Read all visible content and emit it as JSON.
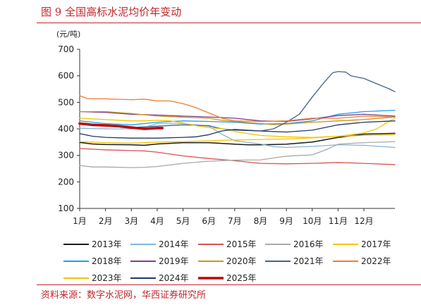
{
  "header": {
    "title": "图 9 全国高标水泥均价年变动"
  },
  "footer": {
    "source": "资料来源：数字水泥网，华西证券研究所"
  },
  "chart_data": {
    "type": "line",
    "title": "",
    "unit_label": "(元/吨)",
    "xlabel": "",
    "ylabel": "",
    "categories": [
      "1月",
      "2月",
      "3月",
      "4月",
      "5月",
      "6月",
      "7月",
      "8月",
      "9月",
      "10月",
      "11月",
      "12月"
    ],
    "x_range": [
      1,
      13.2
    ],
    "ylim": [
      100,
      700
    ],
    "yticks": [
      100,
      200,
      300,
      400,
      500,
      600,
      700
    ],
    "grid": false,
    "legend_position": "bottom",
    "series": [
      {
        "name": "2013年",
        "color": "#1a1a1a",
        "width": 1.5,
        "points": [
          [
            1,
            349
          ],
          [
            1.5,
            343
          ],
          [
            2,
            341
          ],
          [
            3,
            340
          ],
          [
            3.5,
            338
          ],
          [
            4,
            343
          ],
          [
            5,
            348
          ],
          [
            6,
            348
          ],
          [
            7,
            342
          ],
          [
            7.5,
            340
          ],
          [
            8,
            340
          ],
          [
            9,
            342
          ],
          [
            10,
            350
          ],
          [
            11,
            368
          ],
          [
            12,
            380
          ],
          [
            13.2,
            383
          ]
        ]
      },
      {
        "name": "2014年",
        "color": "#7fb7e0",
        "width": 1.3,
        "points": [
          [
            1,
            402
          ],
          [
            2,
            400
          ],
          [
            3,
            400
          ],
          [
            3.5,
            405
          ],
          [
            4,
            420
          ],
          [
            5,
            420
          ],
          [
            6,
            410
          ],
          [
            6.5,
            380
          ],
          [
            7,
            355
          ],
          [
            8,
            343
          ],
          [
            8.5,
            333
          ],
          [
            9,
            330
          ],
          [
            10,
            334
          ],
          [
            11,
            340
          ],
          [
            12,
            338
          ],
          [
            13.2,
            330
          ]
        ]
      },
      {
        "name": "2015年",
        "color": "#d9534f",
        "width": 1.3,
        "points": [
          [
            1,
            326
          ],
          [
            2,
            321
          ],
          [
            3,
            318
          ],
          [
            3.5,
            317
          ],
          [
            4,
            312
          ],
          [
            5,
            298
          ],
          [
            6,
            288
          ],
          [
            7,
            280
          ],
          [
            7.5,
            275
          ],
          [
            8,
            270
          ],
          [
            9,
            268
          ],
          [
            10,
            270
          ],
          [
            11,
            273
          ],
          [
            12,
            270
          ],
          [
            13.2,
            265
          ]
        ]
      },
      {
        "name": "2016年",
        "color": "#a9a9a9",
        "width": 1.3,
        "points": [
          [
            1,
            262
          ],
          [
            1.5,
            256
          ],
          [
            2,
            256
          ],
          [
            3,
            254
          ],
          [
            3.5,
            255
          ],
          [
            4,
            258
          ],
          [
            5,
            270
          ],
          [
            6,
            278
          ],
          [
            7,
            282
          ],
          [
            8,
            283
          ],
          [
            8.5,
            290
          ],
          [
            9,
            297
          ],
          [
            10,
            302
          ],
          [
            10.5,
            320
          ],
          [
            11,
            342
          ],
          [
            12,
            348
          ],
          [
            13.2,
            352
          ]
        ]
      },
      {
        "name": "2017年",
        "color": "#f5c400",
        "width": 1.3,
        "points": [
          [
            1,
            352
          ],
          [
            2,
            348
          ],
          [
            3,
            346
          ],
          [
            4,
            350
          ],
          [
            5,
            352
          ],
          [
            6,
            355
          ],
          [
            7,
            358
          ],
          [
            8,
            360
          ],
          [
            9,
            362
          ],
          [
            10,
            366
          ],
          [
            11,
            372
          ],
          [
            11.5,
            378
          ],
          [
            12,
            385
          ],
          [
            12.5,
            400
          ],
          [
            13,
            430
          ],
          [
            13.2,
            440
          ]
        ]
      },
      {
        "name": "2018年",
        "color": "#1ea0e8",
        "width": 1.3,
        "points": [
          [
            1,
            430
          ],
          [
            1.5,
            425
          ],
          [
            2,
            420
          ],
          [
            3,
            415
          ],
          [
            4,
            425
          ],
          [
            5,
            430
          ],
          [
            6,
            428
          ],
          [
            7,
            425
          ],
          [
            8,
            418
          ],
          [
            9,
            420
          ],
          [
            10,
            430
          ],
          [
            11,
            455
          ],
          [
            12,
            465
          ],
          [
            13.2,
            470
          ]
        ]
      },
      {
        "name": "2019年",
        "color": "#7b3f98",
        "width": 1.3,
        "points": [
          [
            1,
            465
          ],
          [
            2,
            462
          ],
          [
            3,
            455
          ],
          [
            4,
            452
          ],
          [
            5,
            448
          ],
          [
            6,
            445
          ],
          [
            7,
            440
          ],
          [
            8,
            430
          ],
          [
            9,
            428
          ],
          [
            10,
            438
          ],
          [
            11,
            450
          ],
          [
            12,
            455
          ],
          [
            13.2,
            448
          ]
        ]
      },
      {
        "name": "2020年",
        "color": "#c8961e",
        "width": 1.3,
        "points": [
          [
            1,
            465
          ],
          [
            2,
            465
          ],
          [
            3,
            458
          ],
          [
            4,
            448
          ],
          [
            5,
            444
          ],
          [
            6,
            440
          ],
          [
            6.5,
            432
          ],
          [
            7,
            428
          ],
          [
            8,
            420
          ],
          [
            8.5,
            416
          ],
          [
            9,
            418
          ],
          [
            10,
            425
          ],
          [
            11,
            430
          ],
          [
            12,
            435
          ],
          [
            13.2,
            445
          ]
        ]
      },
      {
        "name": "2021年",
        "color": "#44628f",
        "width": 1.3,
        "points": [
          [
            1,
            418
          ],
          [
            2,
            412
          ],
          [
            3,
            405
          ],
          [
            4,
            410
          ],
          [
            5,
            415
          ],
          [
            6,
            412
          ],
          [
            6.5,
            400
          ],
          [
            7,
            395
          ],
          [
            8,
            392
          ],
          [
            8.5,
            400
          ],
          [
            9,
            425
          ],
          [
            9.5,
            455
          ],
          [
            10,
            520
          ],
          [
            10.5,
            580
          ],
          [
            10.8,
            612
          ],
          [
            11,
            616
          ],
          [
            11.3,
            614
          ],
          [
            11.5,
            600
          ],
          [
            12,
            590
          ],
          [
            12.5,
            570
          ],
          [
            13,
            550
          ],
          [
            13.2,
            540
          ]
        ]
      },
      {
        "name": "2022年",
        "color": "#ee7d31",
        "width": 1.3,
        "points": [
          [
            1,
            525
          ],
          [
            1.3,
            514
          ],
          [
            2,
            513
          ],
          [
            3,
            510
          ],
          [
            3.5,
            512
          ],
          [
            4,
            505
          ],
          [
            4.5,
            505
          ],
          [
            5,
            495
          ],
          [
            5.5,
            480
          ],
          [
            6,
            460
          ],
          [
            6.5,
            440
          ],
          [
            7,
            430
          ],
          [
            8,
            428
          ],
          [
            9,
            430
          ],
          [
            10,
            440
          ],
          [
            11,
            440
          ],
          [
            12,
            448
          ],
          [
            13.2,
            445
          ]
        ]
      },
      {
        "name": "2023年",
        "color": "#f5c400",
        "width": 1.3,
        "points": [
          [
            1,
            440
          ],
          [
            2,
            435
          ],
          [
            3,
            430
          ],
          [
            3.5,
            430
          ],
          [
            4,
            432
          ],
          [
            4.5,
            430
          ],
          [
            5,
            422
          ],
          [
            5.5,
            412
          ],
          [
            6,
            405
          ],
          [
            6.5,
            400
          ],
          [
            7,
            390
          ],
          [
            8,
            375
          ],
          [
            9,
            370
          ],
          [
            10,
            368
          ],
          [
            11,
            372
          ],
          [
            12,
            375
          ],
          [
            13.2,
            378
          ]
        ]
      },
      {
        "name": "2024年",
        "color": "#1f3a66",
        "width": 1.3,
        "points": [
          [
            1,
            382
          ],
          [
            1.5,
            372
          ],
          [
            2,
            368
          ],
          [
            3,
            365
          ],
          [
            4,
            365
          ],
          [
            5,
            368
          ],
          [
            5.5,
            370
          ],
          [
            6,
            378
          ],
          [
            6.5,
            392
          ],
          [
            7,
            398
          ],
          [
            8,
            392
          ],
          [
            8.5,
            390
          ],
          [
            9,
            388
          ],
          [
            10,
            395
          ],
          [
            11,
            415
          ],
          [
            12,
            425
          ],
          [
            13.2,
            430
          ]
        ]
      },
      {
        "name": "2025年",
        "color": "#c00000",
        "width": 3.6,
        "points": [
          [
            1,
            420
          ],
          [
            1.5,
            415
          ],
          [
            2,
            413
          ],
          [
            2.5,
            410
          ],
          [
            3,
            405
          ],
          [
            3.5,
            400
          ],
          [
            4,
            403
          ],
          [
            4.2,
            403
          ]
        ]
      }
    ]
  }
}
